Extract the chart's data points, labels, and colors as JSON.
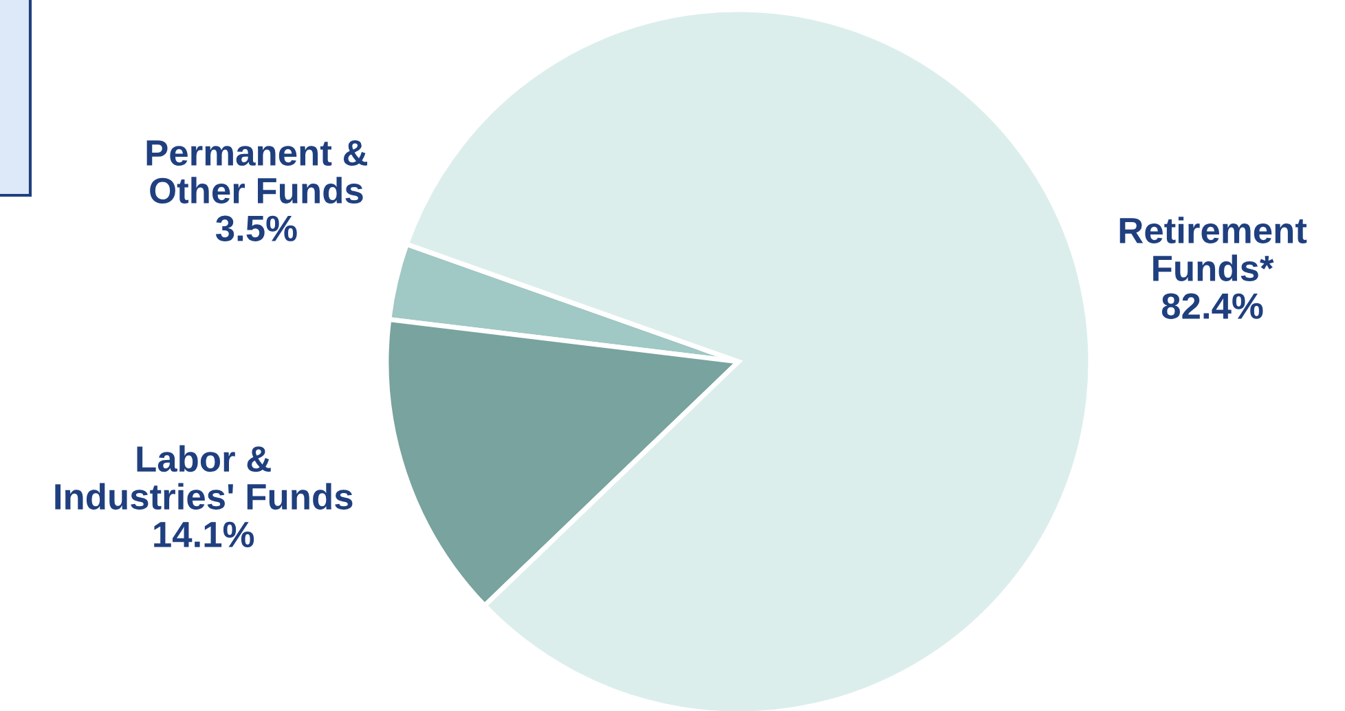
{
  "chart_data": {
    "type": "pie",
    "categories": [
      "Permanent &\nOther Funds",
      "Labor &\nIndustries' Funds",
      "Retirement\nFunds*"
    ],
    "values": [
      3.5,
      14.1,
      82.4
    ],
    "value_labels": [
      "3.5%",
      "14.1%",
      "82.4%"
    ],
    "colors": [
      "#a0c8c5",
      "#78a39f",
      "#dbeeec"
    ]
  }
}
